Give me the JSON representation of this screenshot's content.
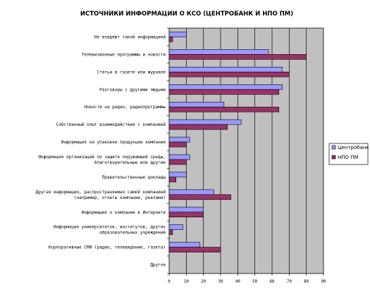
{
  "chart_data": {
    "type": "bar",
    "orientation": "horizontal",
    "title": "ИСТОЧНИКИ ИНФОРМАЦИИ О КСО (ЦЕНТРОБАНК И НПО ПМ)",
    "xlim": [
      0,
      90
    ],
    "xticks": [
      0,
      10,
      20,
      30,
      40,
      50,
      60,
      70,
      80,
      90
    ],
    "grid": true,
    "legend_position": "right",
    "categories": [
      "Не владеют такой информацией",
      "Телевизионные программы и новости",
      "Статьи в газете или журнале",
      "Разговоры с другими людьми",
      "Новости на радио, радиопрограммы",
      "Собственный опыт взаимодействия с компанией",
      "Информация на упаковке продукции компании",
      "Информация организаций по защите окружающей среды, благотворительные или другие",
      "Правительственные доклады",
      "Другая информация, распространяемая самой компанией (например, отчеты компании, реклама)",
      "Информация о компании в Интернете",
      "Информация университетов, институтов, других образовательных учреждений",
      "Корпоративные СМИ (радио, телевидение, газета)",
      "Другое"
    ],
    "series": [
      {
        "name": "Центробанк",
        "color": "#9999ff",
        "values": [
          10,
          58,
          66,
          66,
          32,
          42,
          12,
          12,
          10,
          26,
          20,
          8,
          18,
          0
        ]
      },
      {
        "name": "НПО ПМ",
        "color": "#993366",
        "values": [
          2,
          80,
          70,
          64,
          64,
          34,
          10,
          10,
          4,
          36,
          20,
          2,
          30,
          0
        ]
      }
    ]
  },
  "colors": {
    "plot_background": "#c0c0c0",
    "gridline": "#000000"
  }
}
